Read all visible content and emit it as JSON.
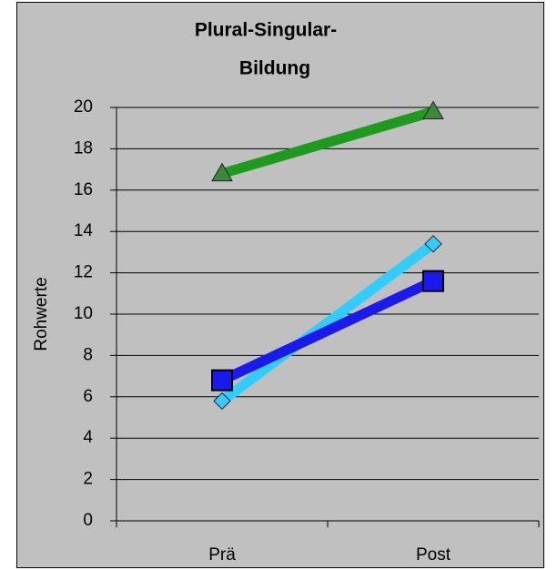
{
  "chart_data": {
    "type": "line",
    "title": [
      "Plural-Singular-",
      "Bildung"
    ],
    "y_label": "Rohwerte",
    "categories": [
      "Prä",
      "Post"
    ],
    "series": [
      {
        "color": "#1e9a1e",
        "marker": "triangle",
        "marker_color": "#3a8a3a",
        "values": [
          16.8,
          19.8
        ]
      },
      {
        "color": "#33ccff",
        "marker": "diamond",
        "marker_color": "#33ccff",
        "values": [
          5.8,
          13.4
        ]
      },
      {
        "color": "#1a1aee",
        "marker": "square",
        "marker_color": "#1a1aee",
        "values": [
          6.8,
          11.6
        ]
      }
    ],
    "ylim": [
      0,
      20
    ],
    "yticks": [
      0,
      2,
      4,
      6,
      8,
      10,
      12,
      14,
      16,
      18,
      20
    ],
    "grid": true
  }
}
